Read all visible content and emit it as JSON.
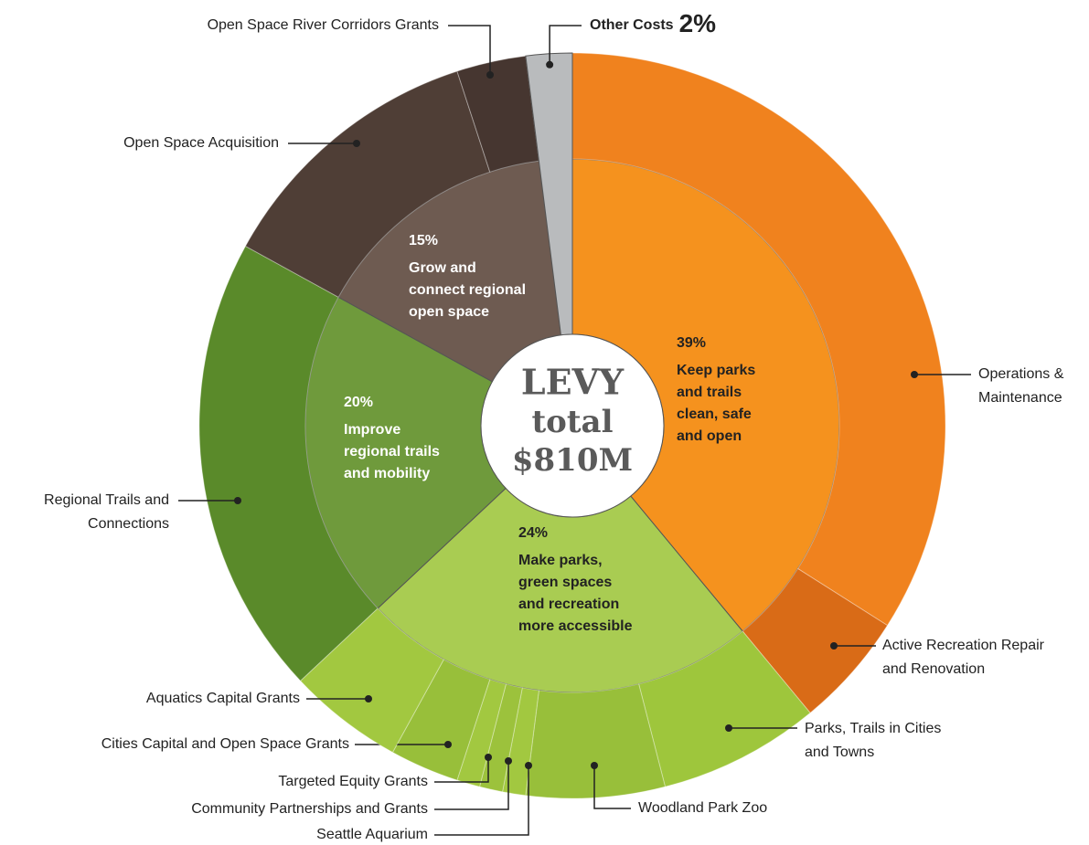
{
  "chart_data": {
    "type": "sunburst",
    "center_label": [
      "LEVY",
      "total",
      "$810M"
    ],
    "groups": [
      {
        "label": [
          "Keep parks",
          "and trails",
          "clean, safe",
          "and open"
        ],
        "value": 39,
        "value_label": "39%",
        "color": "#f5921e",
        "children": [
          {
            "name": [
              "Operations &",
              "Maintenance"
            ],
            "value": 34,
            "color": "#f0821e"
          },
          {
            "name": [
              "Active Recreation Repair",
              "and Renovation"
            ],
            "value": 5,
            "color": "#d96b17"
          }
        ]
      },
      {
        "label": [
          "Make parks,",
          "green spaces",
          "and recreation",
          "more accessible"
        ],
        "value": 24,
        "value_label": "24%",
        "color": "#a9cc52",
        "children": [
          {
            "name": [
              "Parks, Trails in Cities",
              "and Towns"
            ],
            "value": 7,
            "color": "#9ec63c"
          },
          {
            "name": [
              "Woodland Park Zoo"
            ],
            "value": 6,
            "color": "#98bf3a"
          },
          {
            "name": [
              "Seattle Aquarium"
            ],
            "value": 1,
            "color": "#a2c840"
          },
          {
            "name": [
              "Community Partnerships and Grants"
            ],
            "value": 1,
            "color": "#9cc23c"
          },
          {
            "name": [
              "Targeted Equity Grants"
            ],
            "value": 1,
            "color": "#a2c840"
          },
          {
            "name": [
              "Cities Capital and Open Space Grants"
            ],
            "value": 3,
            "color": "#98bf3a"
          },
          {
            "name": [
              "Aquatics Capital Grants"
            ],
            "value": 5,
            "color": "#a2c840"
          }
        ]
      },
      {
        "label": [
          "Improve",
          "regional trails",
          "and mobility"
        ],
        "value": 20,
        "value_label": "20%",
        "color": "#6f9a3c",
        "children": [
          {
            "name": [
              "Regional Trails and",
              "Connections"
            ],
            "value": 20,
            "color": "#5a8a2a"
          }
        ]
      },
      {
        "label": [
          "Grow and",
          "connect regional",
          "open space"
        ],
        "value": 15,
        "value_label": "15%",
        "color": "#6e5b51",
        "children": [
          {
            "name": [
              "Open Space Acquisition"
            ],
            "value": 12,
            "color": "#4f3e36"
          },
          {
            "name": [
              "Open Space River Corridors Grants"
            ],
            "value": 3,
            "color": "#463630"
          }
        ]
      },
      {
        "label": [
          "Other Costs"
        ],
        "value": 2,
        "value_label": "2%",
        "color": "#b9bbbd",
        "children": []
      }
    ]
  }
}
